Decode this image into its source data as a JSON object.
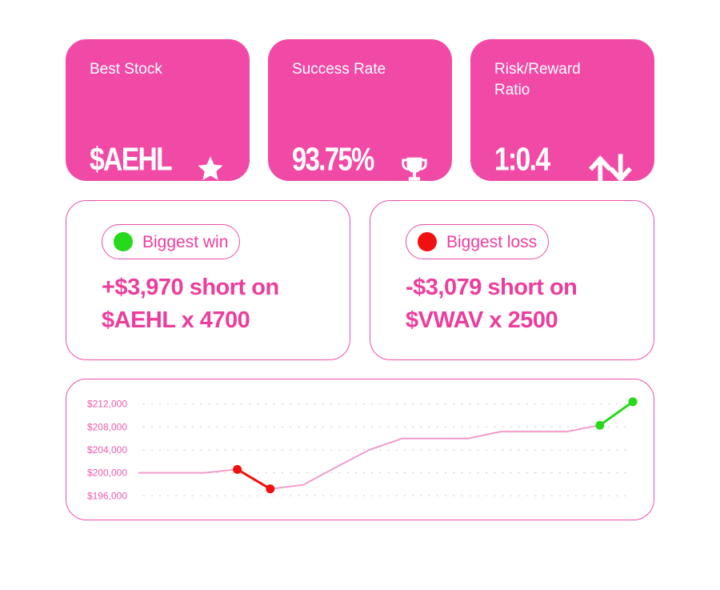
{
  "stats": [
    {
      "label": "Best Stock",
      "value": "$AEHL",
      "icon": "star-icon"
    },
    {
      "label": "Success Rate",
      "value": "93.75%",
      "icon": "trophy-icon"
    },
    {
      "label": "Risk/Reward Ratio",
      "value": "1:0.4",
      "icon": "up-down-arrows-icon"
    }
  ],
  "win": {
    "label": "Biggest win",
    "line1": "+$3,970 short on",
    "line2": "$AEHL x 4700",
    "dot_color": "#26d91a"
  },
  "loss": {
    "label": "Biggest loss",
    "line1": "-$3,079 short on",
    "line2": "$VWAV x 2500",
    "dot_color": "#f01010"
  },
  "colors": {
    "accent": "#f14aa6",
    "line": "#f29ccb",
    "gain": "#26d91a",
    "loss": "#f01010"
  },
  "chart_data": {
    "type": "line",
    "y_ticks": [
      196000,
      200000,
      204000,
      208000,
      212000
    ],
    "y_tick_labels": [
      "$196,000",
      "$200,000",
      "$204,000",
      "$208,000",
      "$212,000"
    ],
    "ylim": [
      194500,
      213500
    ],
    "grid": true,
    "values": [
      200000,
      200000,
      200000,
      200600,
      197200,
      197900,
      201000,
      204000,
      206000,
      206000,
      206000,
      207200,
      207200,
      207200,
      208300,
      212400
    ],
    "highlight_loss": [
      3,
      4
    ],
    "highlight_gain": [
      14,
      15
    ]
  }
}
